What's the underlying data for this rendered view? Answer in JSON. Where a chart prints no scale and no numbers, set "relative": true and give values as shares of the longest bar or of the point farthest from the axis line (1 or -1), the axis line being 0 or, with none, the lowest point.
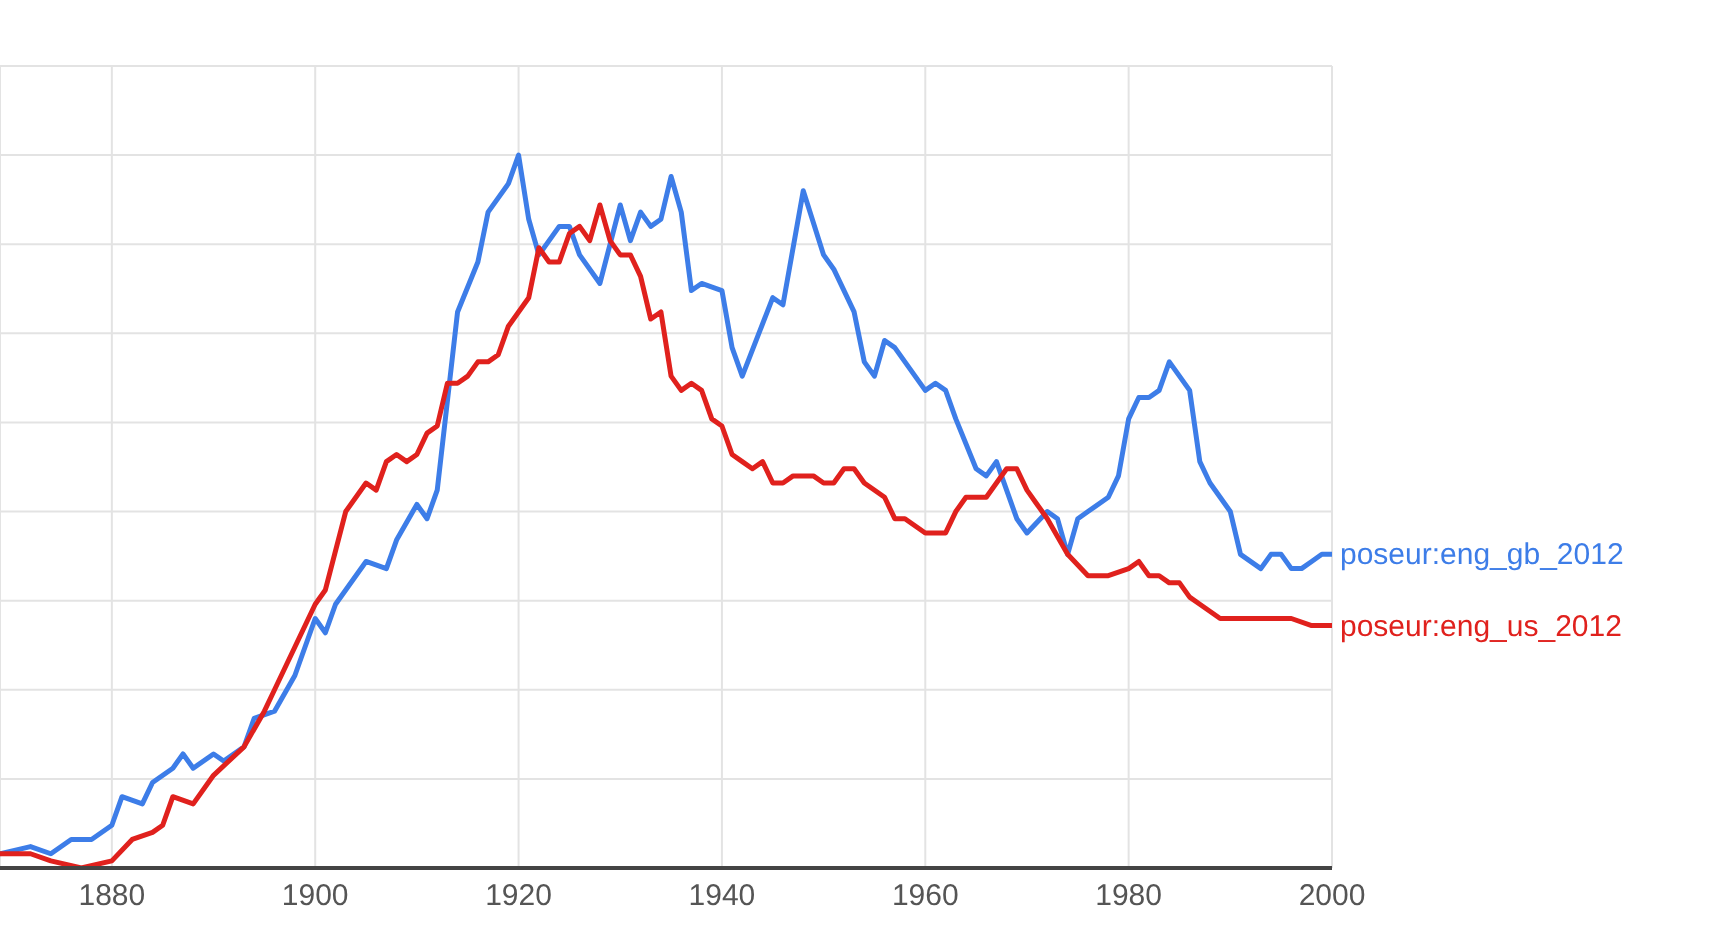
{
  "chart_data": {
    "type": "line",
    "relative": true,
    "grid": true,
    "marker": "none",
    "line_style": "solid",
    "xlim": [
      1869,
      2000
    ],
    "xticks": [
      1880,
      1900,
      1920,
      1940,
      1960,
      1980,
      2000
    ],
    "series": [
      {
        "name": "poseur:eng_gb_2012",
        "color": "#3d7de8",
        "x": [
          1869,
          1872,
          1874,
          1876,
          1878,
          1880,
          1881,
          1883,
          1884,
          1886,
          1887,
          1888,
          1890,
          1891,
          1893,
          1894,
          1896,
          1898,
          1899,
          1900,
          1901,
          1902,
          1903,
          1905,
          1907,
          1908,
          1910,
          1911,
          1912,
          1914,
          1916,
          1917,
          1919,
          1920,
          1921,
          1922,
          1924,
          1925,
          1926,
          1928,
          1930,
          1931,
          1932,
          1933,
          1934,
          1935,
          1936,
          1937,
          1938,
          1940,
          1941,
          1942,
          1945,
          1946,
          1948,
          1950,
          1951,
          1953,
          1954,
          1955,
          1956,
          1957,
          1960,
          1961,
          1962,
          1963,
          1965,
          1966,
          1967,
          1969,
          1970,
          1972,
          1973,
          1974,
          1975,
          1976,
          1978,
          1979,
          1980,
          1981,
          1982,
          1983,
          1984,
          1985,
          1986,
          1987,
          1988,
          1989,
          1990,
          1991,
          1993,
          1994,
          1995,
          1996,
          1997,
          1998,
          1999,
          2000
        ],
        "values": [
          0.02,
          0.03,
          0.02,
          0.04,
          0.04,
          0.06,
          0.1,
          0.09,
          0.12,
          0.14,
          0.16,
          0.14,
          0.16,
          0.15,
          0.17,
          0.21,
          0.22,
          0.27,
          0.31,
          0.35,
          0.33,
          0.37,
          0.39,
          0.43,
          0.42,
          0.46,
          0.51,
          0.49,
          0.53,
          0.78,
          0.85,
          0.92,
          0.96,
          1,
          0.91,
          0.86,
          0.9,
          0.9,
          0.86,
          0.82,
          0.93,
          0.88,
          0.92,
          0.9,
          0.91,
          0.97,
          0.92,
          0.81,
          0.82,
          0.81,
          0.73,
          0.69,
          0.8,
          0.79,
          0.95,
          0.86,
          0.84,
          0.78,
          0.71,
          0.69,
          0.74,
          0.73,
          0.67,
          0.68,
          0.67,
          0.63,
          0.56,
          0.55,
          0.57,
          0.49,
          0.47,
          0.5,
          0.49,
          0.44,
          0.49,
          0.5,
          0.52,
          0.55,
          0.63,
          0.66,
          0.66,
          0.67,
          0.71,
          0.69,
          0.67,
          0.57,
          0.54,
          0.52,
          0.5,
          0.44,
          0.42,
          0.44,
          0.44,
          0.42,
          0.42,
          0.43,
          0.44,
          0.44
        ]
      },
      {
        "name": "poseur:eng_us_2012",
        "color": "#e0211d",
        "x": [
          1869,
          1872,
          1874,
          1877,
          1880,
          1882,
          1884,
          1885,
          1886,
          1888,
          1890,
          1893,
          1895,
          1896,
          1898,
          1900,
          1901,
          1903,
          1905,
          1906,
          1907,
          1908,
          1909,
          1910,
          1911,
          1912,
          1913,
          1914,
          1915,
          1916,
          1917,
          1918,
          1919,
          1920,
          1921,
          1922,
          1923,
          1924,
          1925,
          1926,
          1927,
          1928,
          1929,
          1930,
          1931,
          1932,
          1933,
          1934,
          1935,
          1936,
          1937,
          1938,
          1939,
          1940,
          1941,
          1942,
          1943,
          1944,
          1945,
          1946,
          1947,
          1948,
          1949,
          1950,
          1951,
          1952,
          1953,
          1954,
          1956,
          1957,
          1958,
          1960,
          1962,
          1963,
          1964,
          1966,
          1967,
          1968,
          1969,
          1970,
          1971,
          1972,
          1974,
          1976,
          1978,
          1980,
          1981,
          1982,
          1983,
          1984,
          1985,
          1986,
          1987,
          1989,
          1991,
          1992,
          1993,
          1994,
          1996,
          1998,
          2000
        ],
        "values": [
          0.02,
          0.02,
          0.01,
          0.0,
          0.01,
          0.04,
          0.05,
          0.06,
          0.1,
          0.09,
          0.13,
          0.17,
          0.22,
          0.25,
          0.31,
          0.37,
          0.39,
          0.5,
          0.54,
          0.53,
          0.57,
          0.58,
          0.57,
          0.58,
          0.61,
          0.62,
          0.68,
          0.68,
          0.69,
          0.71,
          0.71,
          0.72,
          0.76,
          0.78,
          0.8,
          0.87,
          0.85,
          0.85,
          0.89,
          0.9,
          0.88,
          0.93,
          0.88,
          0.86,
          0.86,
          0.83,
          0.77,
          0.78,
          0.69,
          0.67,
          0.68,
          0.67,
          0.63,
          0.62,
          0.58,
          0.57,
          0.56,
          0.57,
          0.54,
          0.54,
          0.55,
          0.55,
          0.55,
          0.54,
          0.54,
          0.56,
          0.56,
          0.54,
          0.52,
          0.49,
          0.49,
          0.47,
          0.47,
          0.5,
          0.52,
          0.52,
          0.54,
          0.56,
          0.56,
          0.53,
          0.51,
          0.49,
          0.44,
          0.41,
          0.41,
          0.42,
          0.43,
          0.41,
          0.41,
          0.4,
          0.4,
          0.38,
          0.37,
          0.35,
          0.35,
          0.35,
          0.35,
          0.35,
          0.35,
          0.34,
          0.34
        ]
      }
    ]
  }
}
